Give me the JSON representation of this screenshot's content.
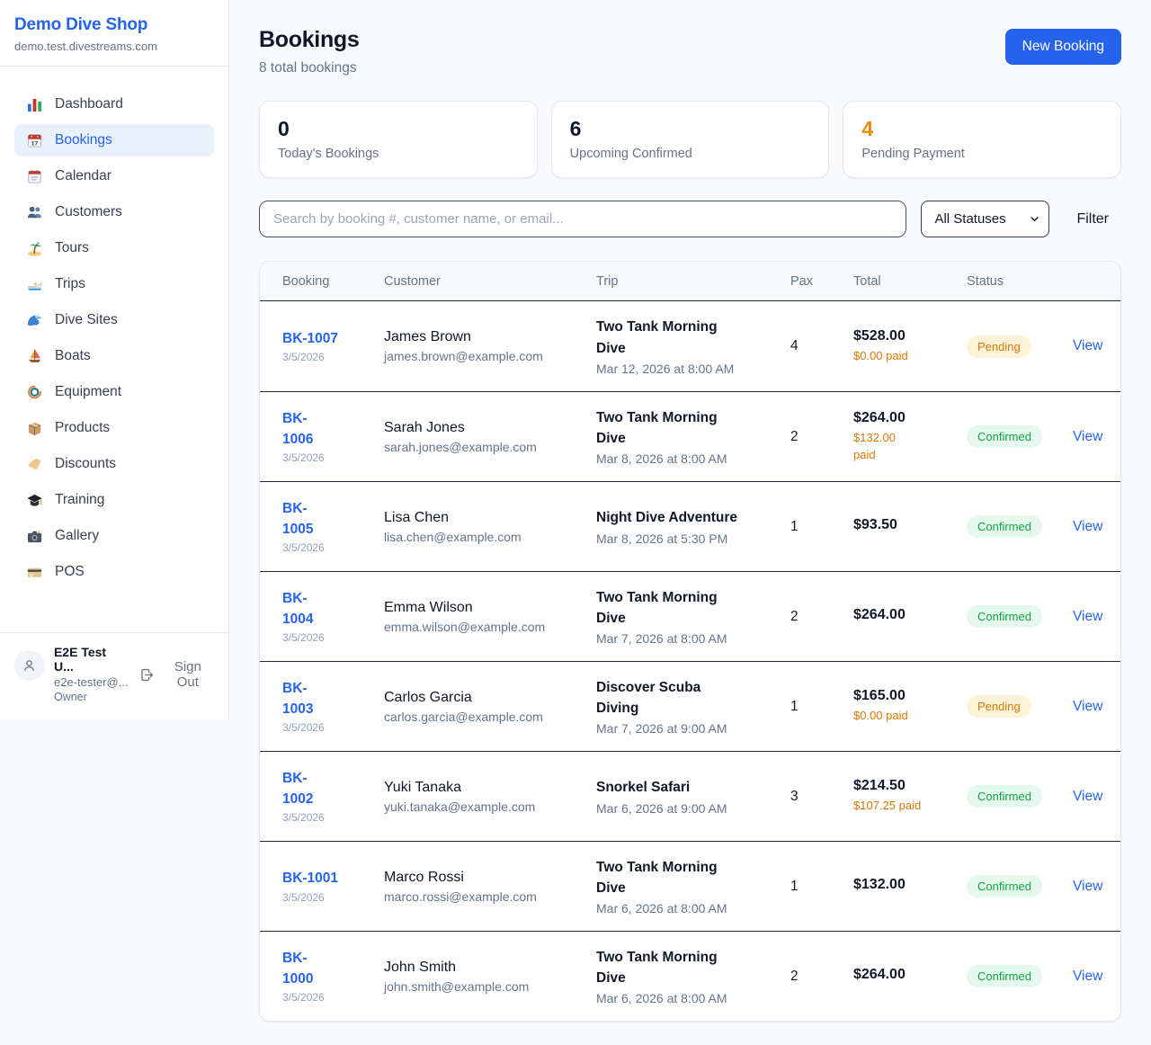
{
  "colors": {
    "accent": "#2563eb",
    "pending_text": "#d97706",
    "confirmed_text": "#16a34a",
    "stat_orange": "#e8890c",
    "page_bg": "#f8fafc"
  },
  "sidebar": {
    "shop_name": "Demo Dive Shop",
    "domain": "demo.test.divestreams.com",
    "items": [
      {
        "key": "dashboard",
        "label": "Dashboard",
        "icon": "dashboard-icon",
        "state": ""
      },
      {
        "key": "bookings",
        "label": "Bookings",
        "icon": "bookings-icon",
        "state": "active"
      },
      {
        "key": "calendar",
        "label": "Calendar",
        "icon": "calendar-icon",
        "state": ""
      },
      {
        "key": "customers",
        "label": "Customers",
        "icon": "customers-icon",
        "state": ""
      },
      {
        "key": "tours",
        "label": "Tours",
        "icon": "tours-icon",
        "state": ""
      },
      {
        "key": "trips",
        "label": "Trips",
        "icon": "trips-icon",
        "state": ""
      },
      {
        "key": "dive-sites",
        "label": "Dive Sites",
        "icon": "dive-sites-icon",
        "state": ""
      },
      {
        "key": "boats",
        "label": "Boats",
        "icon": "boats-icon",
        "state": ""
      },
      {
        "key": "equipment",
        "label": "Equipment",
        "icon": "equipment-icon",
        "state": ""
      },
      {
        "key": "products",
        "label": "Products",
        "icon": "products-icon",
        "state": ""
      },
      {
        "key": "discounts",
        "label": "Discounts",
        "icon": "discounts-icon",
        "state": ""
      },
      {
        "key": "training",
        "label": "Training",
        "icon": "training-icon",
        "state": ""
      },
      {
        "key": "gallery",
        "label": "Gallery",
        "icon": "gallery-icon",
        "state": ""
      },
      {
        "key": "pos",
        "label": "POS",
        "icon": "pos-icon",
        "state": ""
      }
    ],
    "footer": {
      "avatar_icon": "avatar-person-icon",
      "name": "E2E Test U...",
      "email": "e2e-tester@...",
      "role": "Owner",
      "signout_icon": "signout-icon",
      "signout_label": "Sign Out"
    }
  },
  "header": {
    "title": "Bookings",
    "subtitle": "8 total bookings",
    "new_booking_label": "New Booking"
  },
  "stats": {
    "cards": [
      {
        "value": "0",
        "label": "Today's Bookings",
        "value_class": ""
      },
      {
        "value": "6",
        "label": "Upcoming Confirmed",
        "value_class": ""
      },
      {
        "value": "4",
        "label": "Pending Payment",
        "value_class": "orange"
      }
    ]
  },
  "controls": {
    "search_placeholder": "Search by booking #, customer name, or email...",
    "status_filter_value": "All Statuses",
    "chevron_icon": "chevron-down-icon",
    "filter_label": "Filter"
  },
  "table": {
    "columns": [
      "Booking",
      "Customer",
      "Trip",
      "Pax",
      "Total",
      "Status"
    ],
    "view_label": "View",
    "rows": [
      {
        "id_line1": "BK-1007",
        "id_line2": "",
        "date": "3/5/2026",
        "customer_name": "James Brown",
        "customer_email": "james.brown@example.com",
        "trip_line1": "Two Tank Morning",
        "trip_line2": "Dive",
        "trip_time": "Mar 12, 2026 at 8:00 AM",
        "pax": "4",
        "total": "$528.00",
        "paid_line1": "$0.00 paid",
        "paid_line2": "",
        "status_label": "Pending",
        "status_class": "pending"
      },
      {
        "id_line1": "BK-",
        "id_line2": "1006",
        "date": "3/5/2026",
        "customer_name": "Sarah Jones",
        "customer_email": "sarah.jones@example.com",
        "trip_line1": "Two Tank Morning",
        "trip_line2": "Dive",
        "trip_time": "Mar 8, 2026 at 8:00 AM",
        "pax": "2",
        "total": "$264.00",
        "paid_line1": "$132.00",
        "paid_line2": "paid",
        "status_label": "Confirmed",
        "status_class": "confirmed"
      },
      {
        "id_line1": "BK-",
        "id_line2": "1005",
        "date": "3/5/2026",
        "customer_name": "Lisa Chen",
        "customer_email": "lisa.chen@example.com",
        "trip_line1": "Night Dive Adventure",
        "trip_line2": "",
        "trip_time": "Mar 8, 2026 at 5:30 PM",
        "pax": "1",
        "total": "$93.50",
        "paid_line1": "",
        "paid_line2": "",
        "status_label": "Confirmed",
        "status_class": "confirmed"
      },
      {
        "id_line1": "BK-",
        "id_line2": "1004",
        "date": "3/5/2026",
        "customer_name": "Emma Wilson",
        "customer_email": "emma.wilson@example.com",
        "trip_line1": "Two Tank Morning",
        "trip_line2": "Dive",
        "trip_time": "Mar 7, 2026 at 8:00 AM",
        "pax": "2",
        "total": "$264.00",
        "paid_line1": "",
        "paid_line2": "",
        "status_label": "Confirmed",
        "status_class": "confirmed"
      },
      {
        "id_line1": "BK-",
        "id_line2": "1003",
        "date": "3/5/2026",
        "customer_name": "Carlos Garcia",
        "customer_email": "carlos.garcia@example.com",
        "trip_line1": "Discover Scuba",
        "trip_line2": "Diving",
        "trip_time": "Mar 7, 2026 at 9:00 AM",
        "pax": "1",
        "total": "$165.00",
        "paid_line1": "$0.00 paid",
        "paid_line2": "",
        "status_label": "Pending",
        "status_class": "pending"
      },
      {
        "id_line1": "BK-",
        "id_line2": "1002",
        "date": "3/5/2026",
        "customer_name": "Yuki Tanaka",
        "customer_email": "yuki.tanaka@example.com",
        "trip_line1": "Snorkel Safari",
        "trip_line2": "",
        "trip_time": "Mar 6, 2026 at 9:00 AM",
        "pax": "3",
        "total": "$214.50",
        "paid_line1": "$107.25 paid",
        "paid_line2": "",
        "status_label": "Confirmed",
        "status_class": "confirmed"
      },
      {
        "id_line1": "BK-1001",
        "id_line2": "",
        "date": "3/5/2026",
        "customer_name": "Marco Rossi",
        "customer_email": "marco.rossi@example.com",
        "trip_line1": "Two Tank Morning",
        "trip_line2": "Dive",
        "trip_time": "Mar 6, 2026 at 8:00 AM",
        "pax": "1",
        "total": "$132.00",
        "paid_line1": "",
        "paid_line2": "",
        "status_label": "Confirmed",
        "status_class": "confirmed"
      },
      {
        "id_line1": "BK-",
        "id_line2": "1000",
        "date": "3/5/2026",
        "customer_name": "John Smith",
        "customer_email": "john.smith@example.com",
        "trip_line1": "Two Tank Morning",
        "trip_line2": "Dive",
        "trip_time": "Mar 6, 2026 at 8:00 AM",
        "pax": "2",
        "total": "$264.00",
        "paid_line1": "",
        "paid_line2": "",
        "status_label": "Confirmed",
        "status_class": "confirmed"
      }
    ]
  }
}
